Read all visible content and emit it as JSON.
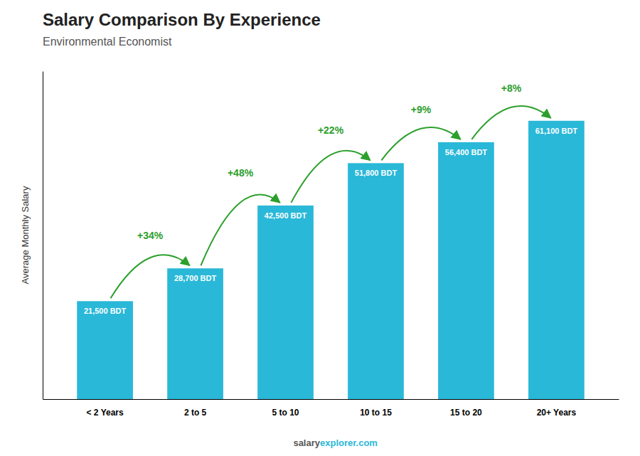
{
  "chart_data": {
    "type": "bar",
    "title": "Salary Comparison By Experience",
    "subtitle": "Environmental Economist",
    "y_label": "Average Monthly Salary",
    "categories": [
      "< 2 Years",
      "2 to 5",
      "5 to 10",
      "10 to 15",
      "15 to 20",
      "20+ Years"
    ],
    "values": [
      21500,
      28700,
      42500,
      51800,
      56400,
      61100
    ],
    "value_labels": [
      "21,500 BDT",
      "28,700 BDT",
      "42,500 BDT",
      "51,800 BDT",
      "56,400 BDT",
      "61,100 BDT"
    ],
    "data_labels": true,
    "annotations": [
      "+34%",
      "+48%",
      "+22%",
      "+9%",
      "+8%"
    ],
    "footer": [
      "salary",
      "explorer.com"
    ],
    "color": "#2ab8d8",
    "ylim": [
      0,
      72000
    ],
    "tick_labels": "x"
  }
}
